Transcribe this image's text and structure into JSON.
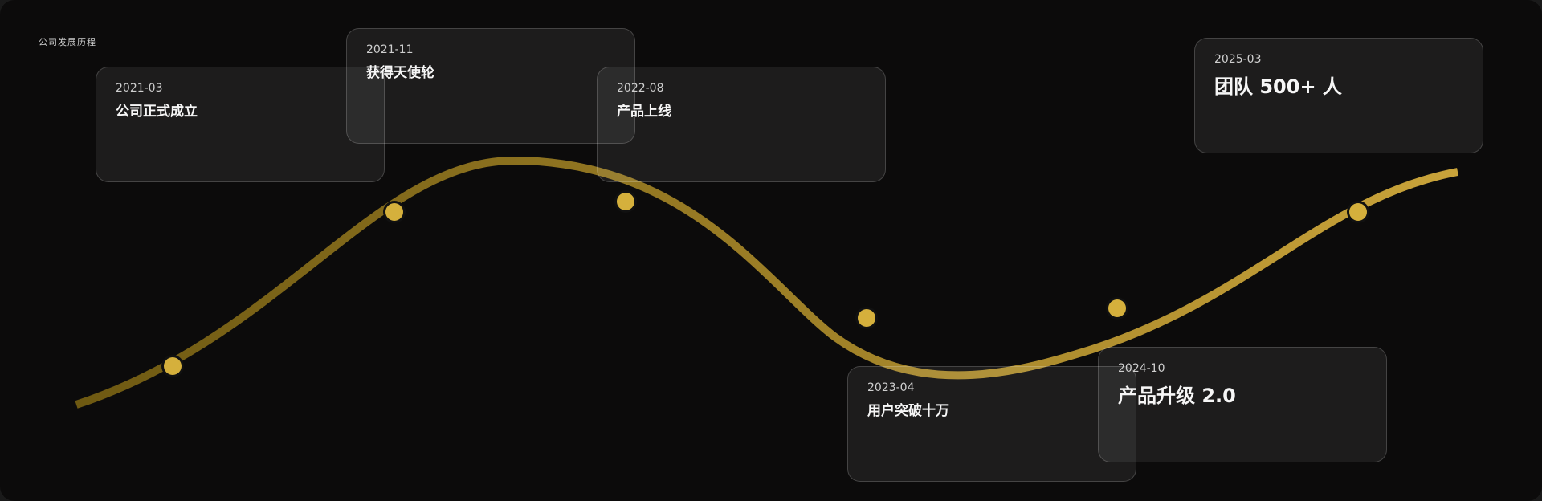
{
  "title": "公司发展历程",
  "colors": {
    "background": "#0c0b0b",
    "line_start": "#6e5912",
    "line_end": "#c9a33a",
    "dot": "#d5b03c"
  },
  "milestones": [
    {
      "date": "2021-03",
      "label": "公司正式成立"
    },
    {
      "date": "2021-11",
      "label": "获得天使轮"
    },
    {
      "date": "2022-08",
      "label": "产品上线"
    },
    {
      "date": "2023-04",
      "label": "用户突破十万"
    },
    {
      "date": "2024-10",
      "label": "产品升级 2.0"
    },
    {
      "date": "2025-03",
      "label": "团队 500+ 人"
    }
  ]
}
